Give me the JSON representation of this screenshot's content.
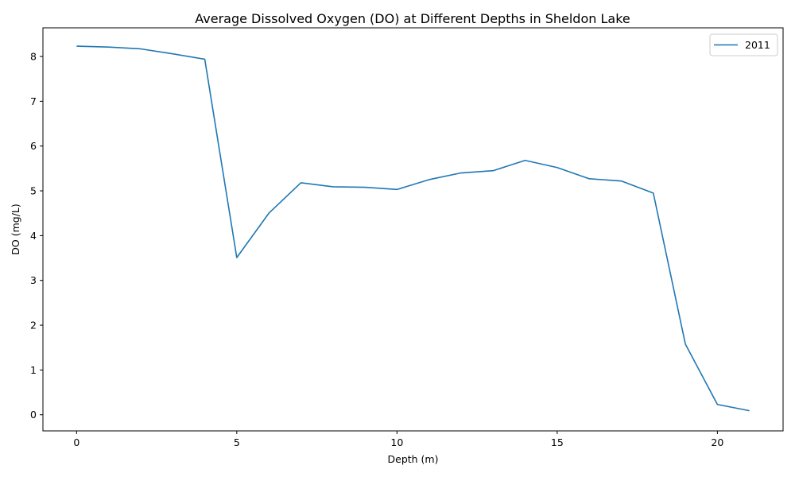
{
  "chart_data": {
    "type": "line",
    "title": "Average Dissolved Oxygen (DO) at Different Depths in Sheldon Lake",
    "xlabel": "Depth (m)",
    "ylabel": "DO (mg/L)",
    "xlim": [
      -1.05,
      22.05
    ],
    "ylim": [
      -0.36,
      8.64
    ],
    "xticks": [
      0,
      5,
      10,
      15,
      20
    ],
    "yticks": [
      0,
      1,
      2,
      3,
      4,
      5,
      6,
      7,
      8
    ],
    "grid": false,
    "legend": "top-right",
    "series": [
      {
        "name": "2011",
        "color": "#1f77b4",
        "x": [
          0,
          1,
          2,
          3,
          4,
          5,
          6,
          7,
          8,
          9,
          10,
          11,
          12,
          13,
          14,
          15,
          16,
          17,
          18,
          19,
          20,
          21
        ],
        "y": [
          8.23,
          8.21,
          8.17,
          8.06,
          7.94,
          3.51,
          4.5,
          5.18,
          5.09,
          5.08,
          5.03,
          5.25,
          5.4,
          5.45,
          5.68,
          5.52,
          5.27,
          5.22,
          4.95,
          1.58,
          0.23,
          0.09
        ]
      }
    ]
  }
}
